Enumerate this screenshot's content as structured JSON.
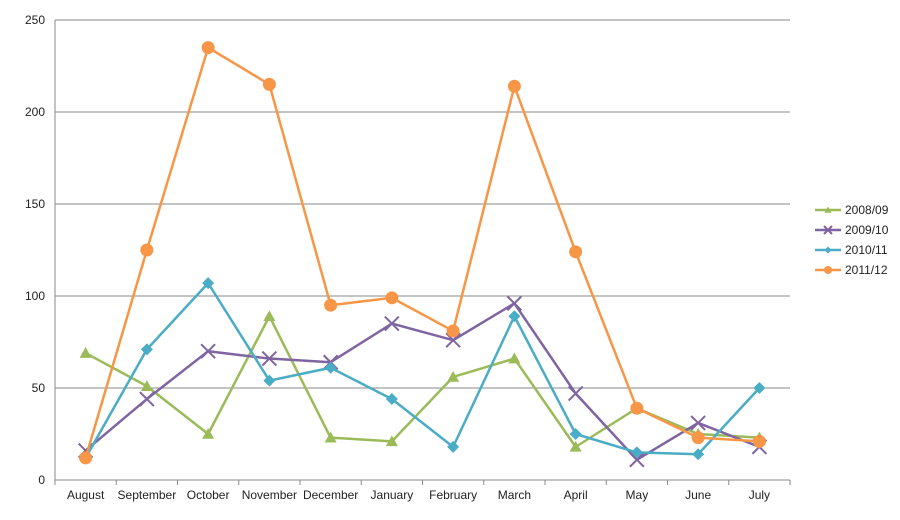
{
  "chart_data": {
    "type": "line",
    "title": "",
    "xlabel": "",
    "ylabel": "",
    "categories": [
      "August",
      "September",
      "October",
      "November",
      "December",
      "January",
      "February",
      "March",
      "April",
      "May",
      "June",
      "July"
    ],
    "ylim": [
      0,
      250
    ],
    "yticks": [
      0,
      50,
      100,
      150,
      200,
      250
    ],
    "grid": true,
    "legend_position": "right",
    "series": [
      {
        "name": "2008/09",
        "color": "#9BBB59",
        "marker": "triangle",
        "values": [
          69,
          51,
          25,
          89,
          23,
          21,
          56,
          66,
          18,
          39,
          25,
          23
        ]
      },
      {
        "name": "2009/10",
        "color": "#8064A2",
        "marker": "x",
        "values": [
          16,
          44,
          70,
          66,
          64,
          85,
          76,
          96,
          47,
          11,
          31,
          18
        ]
      },
      {
        "name": "2010/11",
        "color": "#4BACC6",
        "marker": "diamond",
        "values": [
          12,
          71,
          107,
          54,
          61,
          44,
          18,
          89,
          25,
          15,
          14,
          50
        ]
      },
      {
        "name": "2011/12",
        "color": "#F79646",
        "marker": "circle",
        "values": [
          12,
          125,
          235,
          215,
          95,
          99,
          81,
          214,
          124,
          39,
          23,
          21
        ]
      }
    ]
  }
}
